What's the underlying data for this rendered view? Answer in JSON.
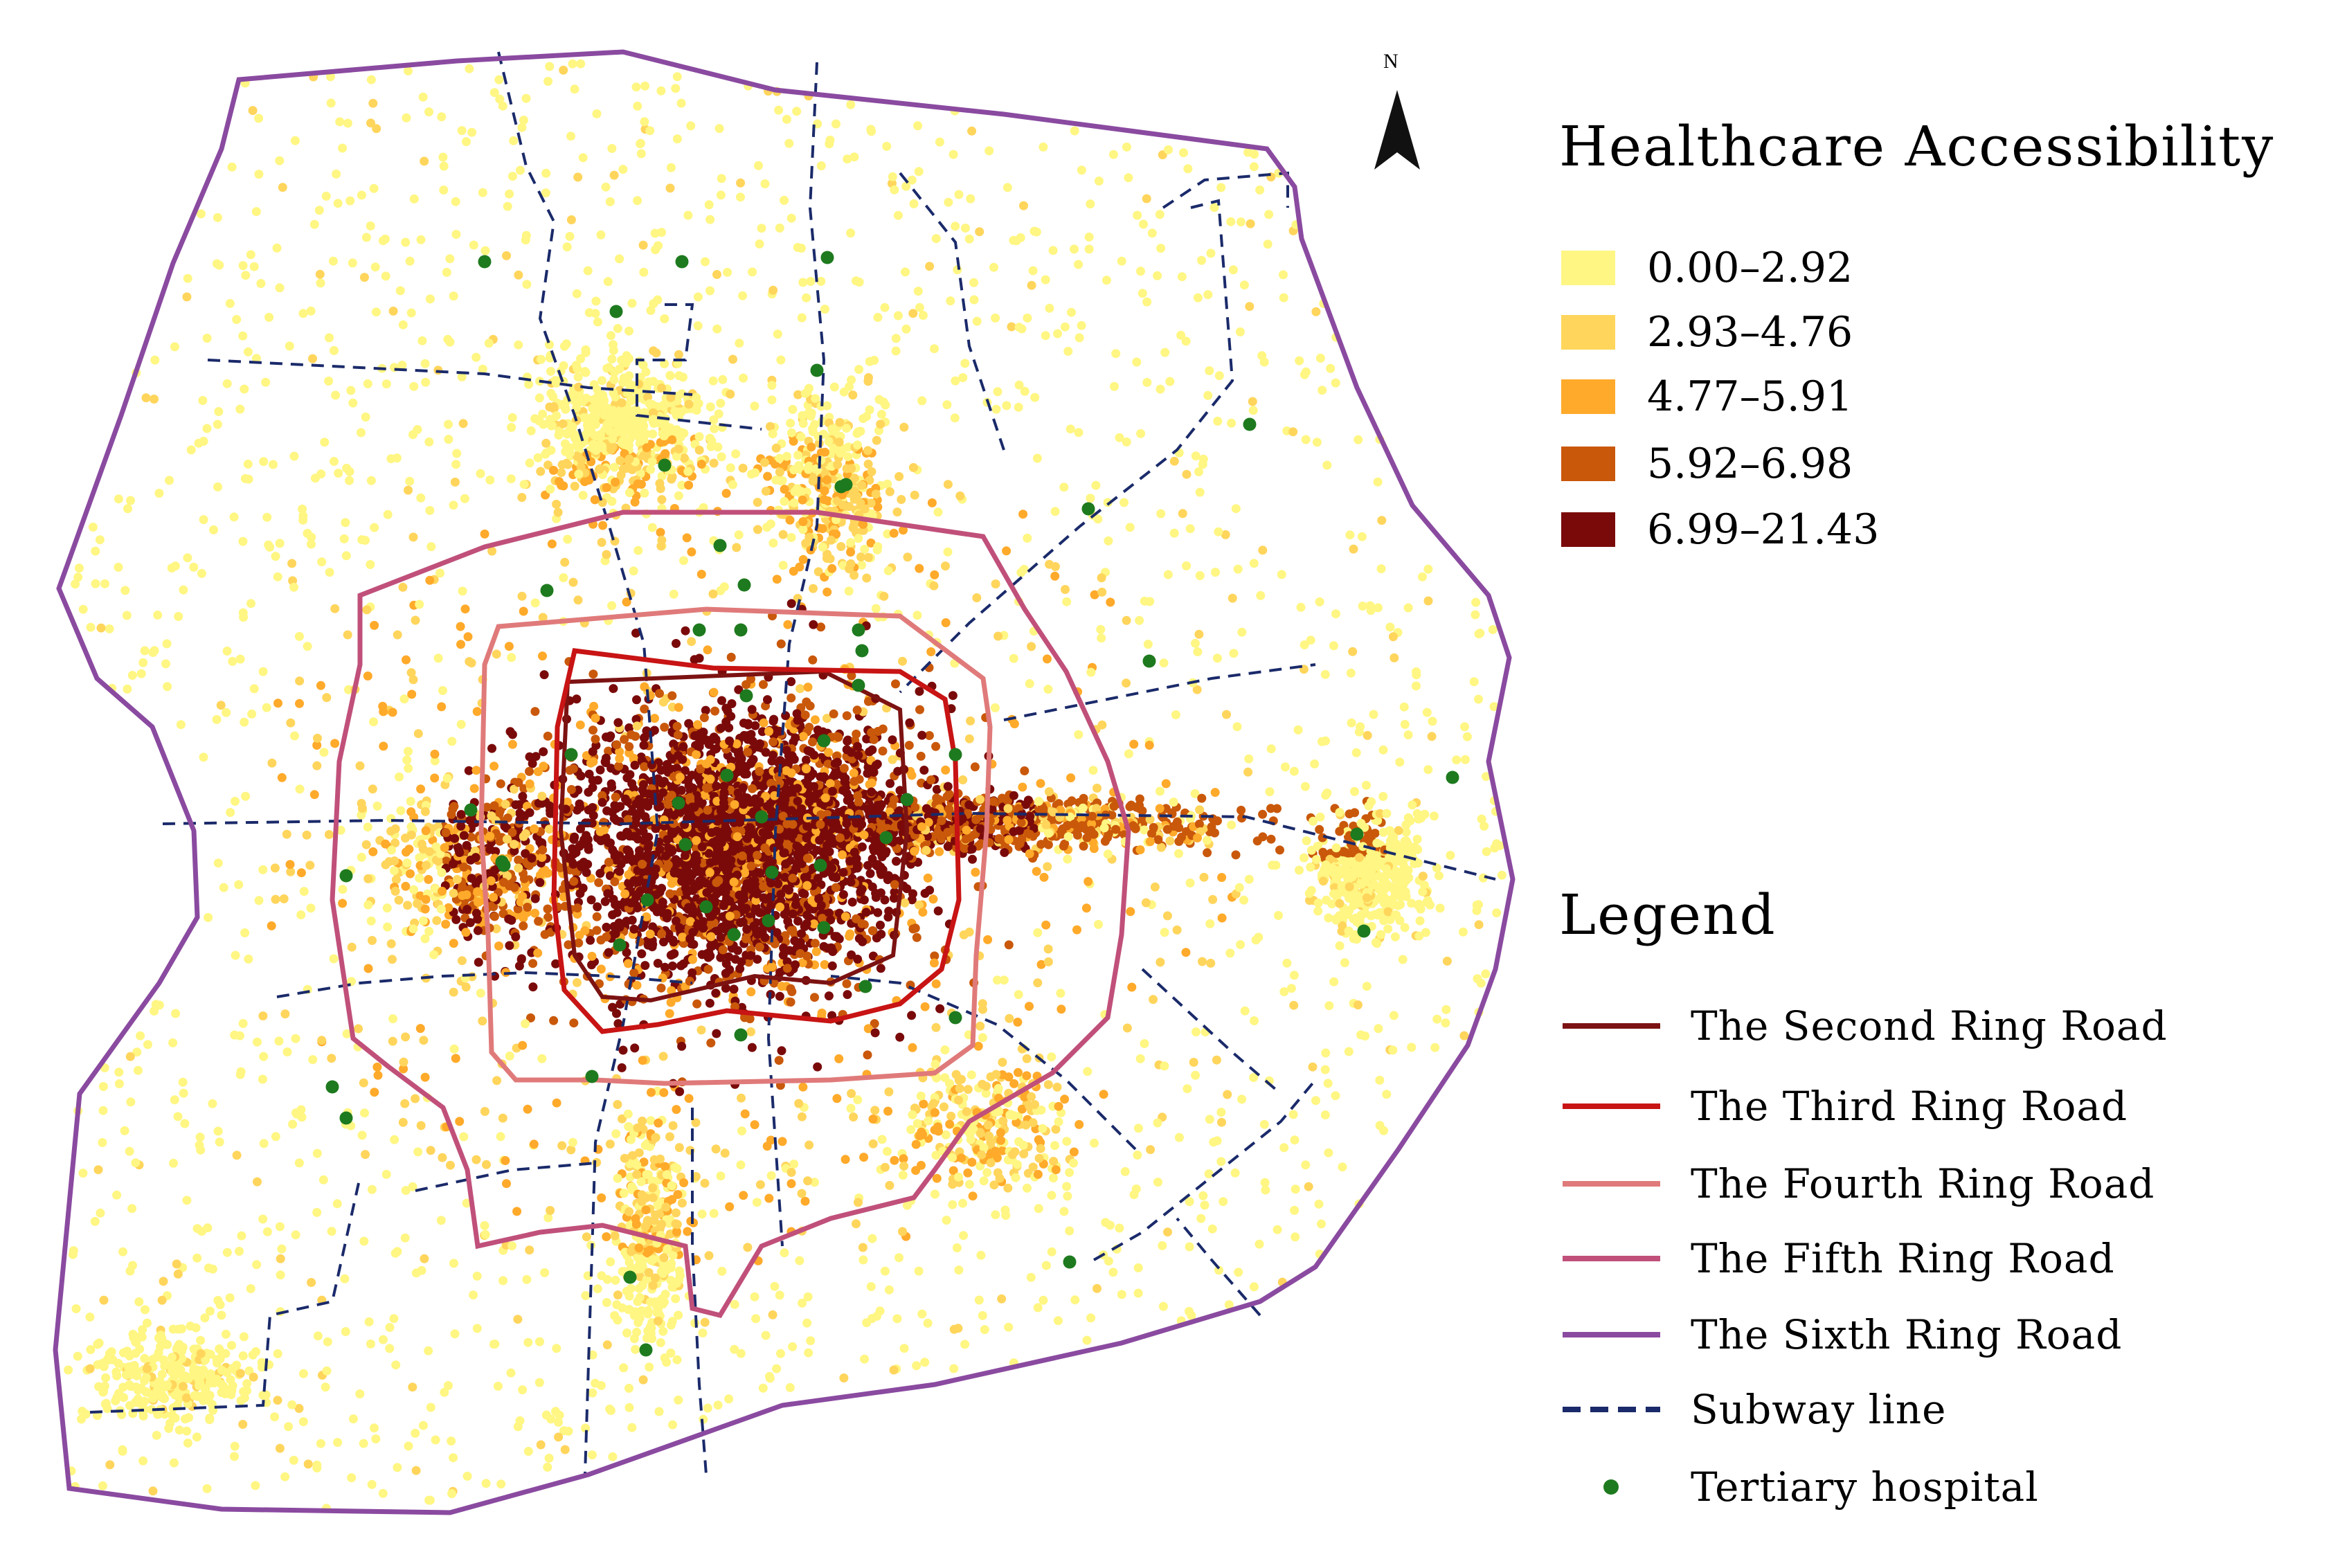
{
  "title": "Healthcare Accessibility",
  "north_arrow": {
    "label": "N"
  },
  "accessibility_classes": [
    {
      "label": "0.00–2.92",
      "color": "#fff683"
    },
    {
      "label": "2.93–4.76",
      "color": "#ffd55c"
    },
    {
      "label": "4.77–5.91",
      "color": "#ffaa2a"
    },
    {
      "label": "5.92–6.98",
      "color": "#c9580a"
    },
    {
      "label": "6.99–21.43",
      "color": "#7a0a0a"
    }
  ],
  "legend": {
    "title": "Legend",
    "items": [
      {
        "label": "The Second Ring Road",
        "color": "#7c1212",
        "symbol": "line"
      },
      {
        "label": "The Third Ring Road",
        "color": "#c81414",
        "symbol": "line"
      },
      {
        "label": "The Fourth Ring Road",
        "color": "#e07a7a",
        "symbol": "line"
      },
      {
        "label": "The Fifth Ring Road",
        "color": "#c0507a",
        "symbol": "line"
      },
      {
        "label": "The Sixth Ring Road",
        "color": "#8a4aa0",
        "symbol": "line"
      },
      {
        "label": "Subway line",
        "color": "#1a2a6a",
        "symbol": "dashed-line"
      },
      {
        "label": "Tertiary hospital",
        "color": "#1e7a1e",
        "symbol": "dot"
      }
    ]
  }
}
